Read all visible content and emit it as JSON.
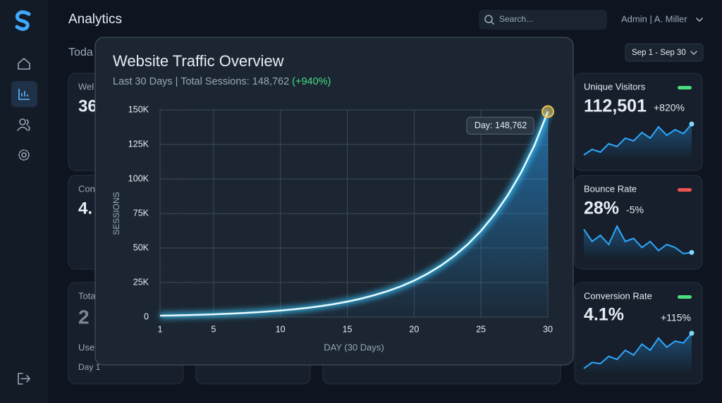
{
  "header": {
    "title": "Analytics",
    "section": "Toda",
    "search_placeholder": "Search...",
    "user": "Admin | A. Miller",
    "date_range": "Sep 1 - Sep 30"
  },
  "background_cards": [
    {
      "label": "Wel",
      "value": "36"
    },
    {
      "label": "Con",
      "value": "4."
    },
    {
      "label": "Tota",
      "value": "2",
      "sub": "Use",
      "foot": "Day 1"
    }
  ],
  "stat_cards": [
    {
      "title": "Unique Visitors",
      "value": "112,501",
      "change": "+820%",
      "change_color": "#4ade80",
      "spark": [
        3,
        4,
        3.5,
        5,
        4.5,
        6,
        5.5,
        7,
        6,
        8,
        6.5,
        7.5,
        6.8,
        8.5
      ]
    },
    {
      "title": "Bounce Rate",
      "value": "28%",
      "change": "-5%",
      "change_color": "#ef5350",
      "spark": [
        8,
        6,
        7,
        5.5,
        8.5,
        6,
        6.5,
        5,
        6,
        4.5,
        5.5,
        5,
        4,
        4.2
      ]
    },
    {
      "title": "Conversion Rate",
      "value": "4.1%",
      "change": "+115%",
      "change_color": "#4ade80",
      "spark": [
        2,
        3,
        2.8,
        4,
        3.5,
        5,
        4.2,
        6,
        5,
        7,
        5.5,
        6.5,
        6.2,
        7.8
      ]
    }
  ],
  "chart_data": {
    "type": "line",
    "title": "Website Traffic Overview",
    "subtitle": "Last 30 Days | Total Sessions: 148,762",
    "subtitle_change": "(+940%)",
    "x_label": "DAY (30 Days)",
    "y_label": "SESSIONS",
    "tooltip": "Day: 148,762",
    "color": "#38c8ff",
    "x": [
      1,
      2,
      3,
      4,
      5,
      6,
      7,
      8,
      9,
      10,
      11,
      12,
      13,
      14,
      15,
      16,
      17,
      18,
      19,
      20,
      21,
      22,
      23,
      24,
      25,
      26,
      27,
      28,
      29,
      30
    ],
    "values": [
      1000,
      1188,
      1411,
      1677,
      1992,
      2366,
      2811,
      3340,
      3967,
      4713,
      5600,
      6652,
      7903,
      9389,
      11154,
      13251,
      15742,
      18702,
      22217,
      26394,
      31356,
      37251,
      44254,
      52574,
      62458,
      74200,
      88150,
      104722,
      124410,
      148762
    ],
    "xlim": [
      1,
      30
    ],
    "xticks": [
      1,
      5,
      10,
      15,
      20,
      25,
      30
    ],
    "ylim": [
      0,
      150000
    ],
    "yticks": [
      0,
      {
        "value": 25000,
        "label": "25K"
      },
      {
        "value": 50000,
        "label": "50K"
      },
      {
        "value": 75000,
        "label": "75K"
      },
      {
        "value": 100000,
        "label": "100K"
      },
      {
        "value": 125000,
        "label": "125K"
      },
      {
        "value": 150000,
        "label": "150K"
      }
    ],
    "grid": true
  }
}
